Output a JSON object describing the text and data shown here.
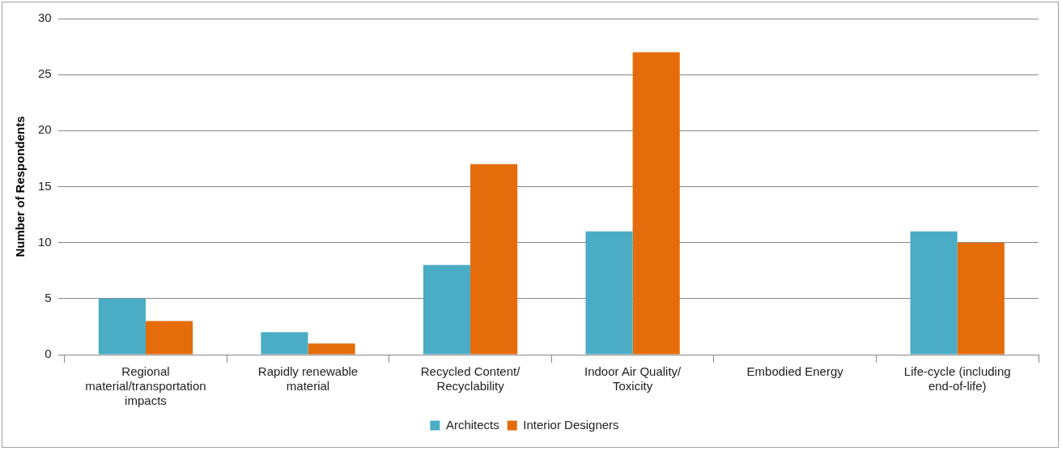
{
  "chart_data": {
    "type": "bar",
    "ylabel": "Number of Respondents",
    "categories": [
      "Regional material/transportation impacts",
      "Rapidly renewable material",
      "Recycled Content/ Recyclability",
      "Indoor Air Quality/ Toxicity",
      "Embodied Energy",
      "Life-cycle (including end-of-life)"
    ],
    "series": [
      {
        "name": "Architects",
        "color": "#4bacc6",
        "values": [
          5,
          2,
          8,
          11,
          0,
          11
        ]
      },
      {
        "name": "Interior Designers",
        "color": "#e46c0a",
        "values": [
          3,
          1,
          17,
          27,
          0,
          10
        ]
      }
    ],
    "ylim": [
      0,
      30
    ],
    "yticks": [
      0,
      5,
      10,
      15,
      20,
      25,
      30
    ],
    "grid": "y",
    "legend": "bottom"
  }
}
